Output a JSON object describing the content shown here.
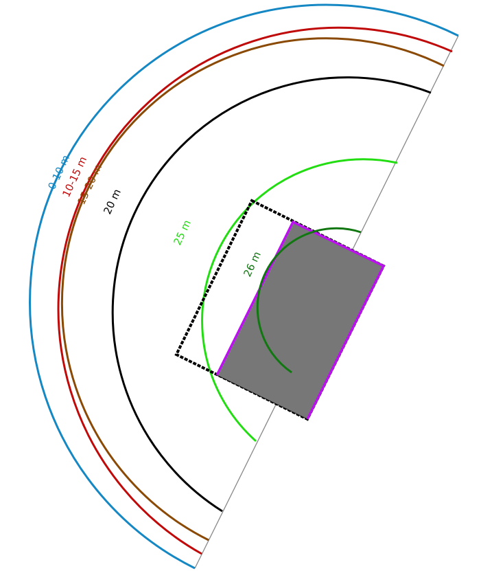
{
  "diagram": {
    "contours": [
      {
        "id": "c-0-10",
        "label": "0-10 m",
        "color": "#1588c4"
      },
      {
        "id": "c-10-15",
        "label": "10-15 m",
        "color": "#c00a0a"
      },
      {
        "id": "c-15-20",
        "label": "15-20 m",
        "color": "#8a4a06"
      },
      {
        "id": "c-20",
        "label": "20 m",
        "color": "#000000"
      },
      {
        "id": "c-25",
        "label": "25 m",
        "color": "#22dd11"
      },
      {
        "id": "c-26",
        "label": "26 m",
        "color": "#117711"
      }
    ],
    "colors": {
      "baseline": "#888888",
      "building_fill": "#777777",
      "building_edge": "#bb11ee",
      "footprint": "#000000"
    }
  }
}
